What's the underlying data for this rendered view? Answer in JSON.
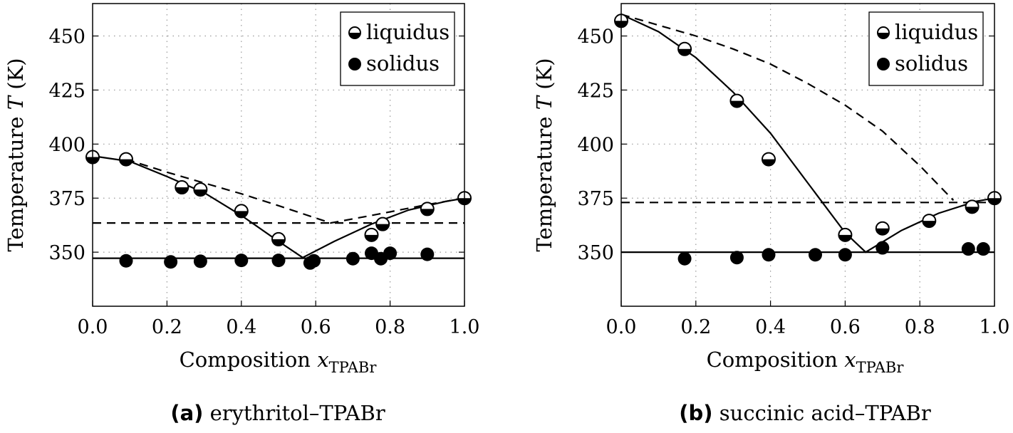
{
  "chart_data": [
    {
      "type": "scatter",
      "caption_label": "(a)",
      "caption_text": " erythritol–TPABr",
      "xlabel": "Composition ",
      "xlabel_var": "x",
      "xlabel_sub": "TPABr",
      "ylabel": "Temperature ",
      "ylabel_var": "T",
      "ylabel_unit": " (K)",
      "xlim": [
        0,
        1
      ],
      "ylim": [
        325,
        465
      ],
      "xticks": [
        "0.0",
        "0.2",
        "0.4",
        "0.6",
        "0.8",
        "1.0"
      ],
      "yticks": [
        "350",
        "375",
        "400",
        "425",
        "450"
      ],
      "grid": true,
      "legend": "top-right",
      "series": [
        {
          "name": "liquidus",
          "marker": "half-filled-circle",
          "points": [
            [
              0,
              394
            ],
            [
              0.09,
              393
            ],
            [
              0.24,
              380
            ],
            [
              0.29,
              379
            ],
            [
              0.4,
              369
            ],
            [
              0.5,
              356
            ],
            [
              0.75,
              358
            ],
            [
              0.78,
              363
            ],
            [
              0.9,
              370
            ],
            [
              1.0,
              375
            ]
          ]
        },
        {
          "name": "solidus",
          "marker": "filled-circle",
          "points": [
            [
              0.09,
              346
            ],
            [
              0.21,
              345.5
            ],
            [
              0.29,
              345.8
            ],
            [
              0.4,
              346.2
            ],
            [
              0.5,
              346.2
            ],
            [
              0.585,
              345
            ],
            [
              0.595,
              346
            ],
            [
              0.7,
              347
            ],
            [
              0.75,
              349.5
            ],
            [
              0.775,
              347
            ],
            [
              0.8,
              349.5
            ],
            [
              0.9,
              349
            ]
          ]
        }
      ],
      "lines": [
        {
          "style": "solid",
          "points": [
            [
              0,
              394.5
            ],
            [
              0.1,
              392
            ],
            [
              0.2,
              385
            ],
            [
              0.3,
              377.5
            ],
            [
              0.4,
              367
            ],
            [
              0.5,
              355
            ],
            [
              0.565,
              347.5
            ],
            [
              0.65,
              355
            ],
            [
              0.75,
              363
            ],
            [
              0.85,
              369.5
            ],
            [
              0.95,
              373.5
            ],
            [
              1.0,
              375
            ]
          ]
        },
        {
          "style": "dashed",
          "points": [
            [
              0.09,
              393
            ],
            [
              0.2,
              387
            ],
            [
              0.3,
              382
            ],
            [
              0.4,
              377
            ],
            [
              0.5,
              371.5
            ],
            [
              0.64,
              363.5
            ],
            [
              0.75,
              367
            ],
            [
              0.9,
              372
            ],
            [
              1.0,
              375
            ]
          ]
        },
        {
          "style": "dashed",
          "points": [
            [
              0,
              363.5
            ],
            [
              1,
              363.5
            ]
          ]
        },
        {
          "style": "solid",
          "points": [
            [
              0,
              347.2
            ],
            [
              1,
              347.2
            ]
          ]
        }
      ]
    },
    {
      "type": "scatter",
      "caption_label": "(b)",
      "caption_text": " succinic acid–TPABr",
      "xlabel": "Composition ",
      "xlabel_var": "x",
      "xlabel_sub": "TPABr",
      "ylabel": "Temperature ",
      "ylabel_var": "T",
      "ylabel_unit": " (K)",
      "xlim": [
        0,
        1
      ],
      "ylim": [
        325,
        465
      ],
      "xticks": [
        "0.0",
        "0.2",
        "0.4",
        "0.6",
        "0.8",
        "1.0"
      ],
      "yticks": [
        "350",
        "375",
        "400",
        "425",
        "450"
      ],
      "grid": true,
      "legend": "top-right",
      "series": [
        {
          "name": "liquidus",
          "marker": "half-filled-circle",
          "points": [
            [
              0,
              457
            ],
            [
              0.17,
              444
            ],
            [
              0.31,
              420
            ],
            [
              0.395,
              393
            ],
            [
              0.6,
              358
            ],
            [
              0.7,
              361
            ],
            [
              0.825,
              364.5
            ],
            [
              0.94,
              371
            ],
            [
              1.0,
              375
            ]
          ]
        },
        {
          "name": "solidus",
          "marker": "filled-circle",
          "points": [
            [
              0.17,
              347
            ],
            [
              0.31,
              347.5
            ],
            [
              0.395,
              348.8
            ],
            [
              0.52,
              348.8
            ],
            [
              0.6,
              348.8
            ],
            [
              0.7,
              352
            ],
            [
              0.93,
              351.5
            ],
            [
              0.97,
              351.5
            ]
          ]
        }
      ],
      "lines": [
        {
          "style": "solid",
          "points": [
            [
              0,
              460
            ],
            [
              0.1,
              452
            ],
            [
              0.2,
              440
            ],
            [
              0.3,
              424
            ],
            [
              0.4,
              405
            ],
            [
              0.5,
              382
            ],
            [
              0.6,
              359
            ],
            [
              0.655,
              350
            ],
            [
              0.75,
              360
            ],
            [
              0.85,
              368
            ],
            [
              0.95,
              373.5
            ],
            [
              1.0,
              375
            ]
          ]
        },
        {
          "style": "dashed",
          "points": [
            [
              0,
              460
            ],
            [
              0.1,
              455
            ],
            [
              0.2,
              450
            ],
            [
              0.3,
              444
            ],
            [
              0.4,
              437
            ],
            [
              0.5,
              428
            ],
            [
              0.6,
              418
            ],
            [
              0.7,
              406
            ],
            [
              0.8,
              390
            ],
            [
              0.89,
              374
            ]
          ]
        },
        {
          "style": "dashed",
          "points": [
            [
              0,
              373
            ],
            [
              1,
              373
            ]
          ]
        },
        {
          "style": "solid",
          "points": [
            [
              0,
              350
            ],
            [
              1,
              350
            ]
          ]
        }
      ]
    }
  ]
}
